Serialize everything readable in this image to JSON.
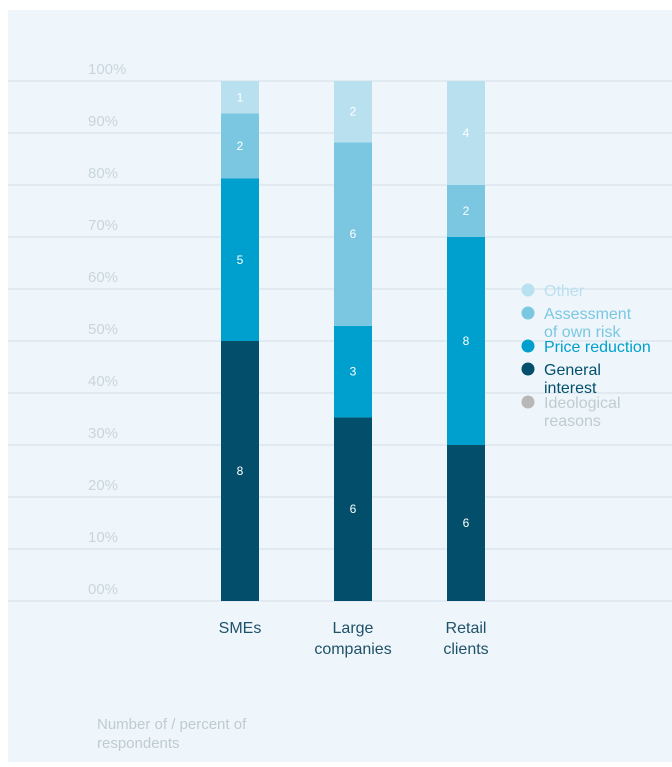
{
  "chart_data": {
    "type": "bar",
    "stacked": true,
    "categories": [
      "SMEs",
      "Large\ncompanies",
      "Retail\nclients"
    ],
    "y_ticks": [
      "00%",
      "10%",
      "20%",
      "30%",
      "40%",
      "50%",
      "60%",
      "70%",
      "80%",
      "90%",
      "100%"
    ],
    "ylim": [
      0,
      100
    ],
    "series": [
      {
        "name": "General interest",
        "color": "#034f6b",
        "values": [
          8,
          6,
          6
        ],
        "percent": [
          50,
          35.3,
          30
        ]
      },
      {
        "name": "Price reduction",
        "color": "#00a0ce",
        "values": [
          5,
          3,
          8
        ],
        "percent": [
          31.25,
          17.6,
          40
        ]
      },
      {
        "name": "Assessment of own risk",
        "color": "#7bc7e2",
        "values": [
          2,
          6,
          2
        ],
        "percent": [
          12.5,
          35.3,
          10
        ]
      },
      {
        "name": "Other",
        "color": "#b9e0ef",
        "values": [
          1,
          2,
          4
        ],
        "percent": [
          6.25,
          11.8,
          20
        ]
      }
    ],
    "legend": {
      "position": "right",
      "items": [
        {
          "label": "Other",
          "color": "#b9e0ef",
          "text_color": "#b9e0ef"
        },
        {
          "label": "Assessment\nof own risk",
          "color": "#7bc7e2",
          "text_color": "#7bc7e2"
        },
        {
          "label": "Price reduction",
          "color": "#00a0ce",
          "text_color": "#00a0ce"
        },
        {
          "label": "General\ninterest",
          "color": "#034f6b",
          "text_color": "#034f6b"
        },
        {
          "label": "Ideological\nreasons",
          "color": "#b8b8b8",
          "text_color": "#bfcbd3"
        }
      ]
    },
    "grid": true
  },
  "footnote": "Number of / percent of respondents"
}
